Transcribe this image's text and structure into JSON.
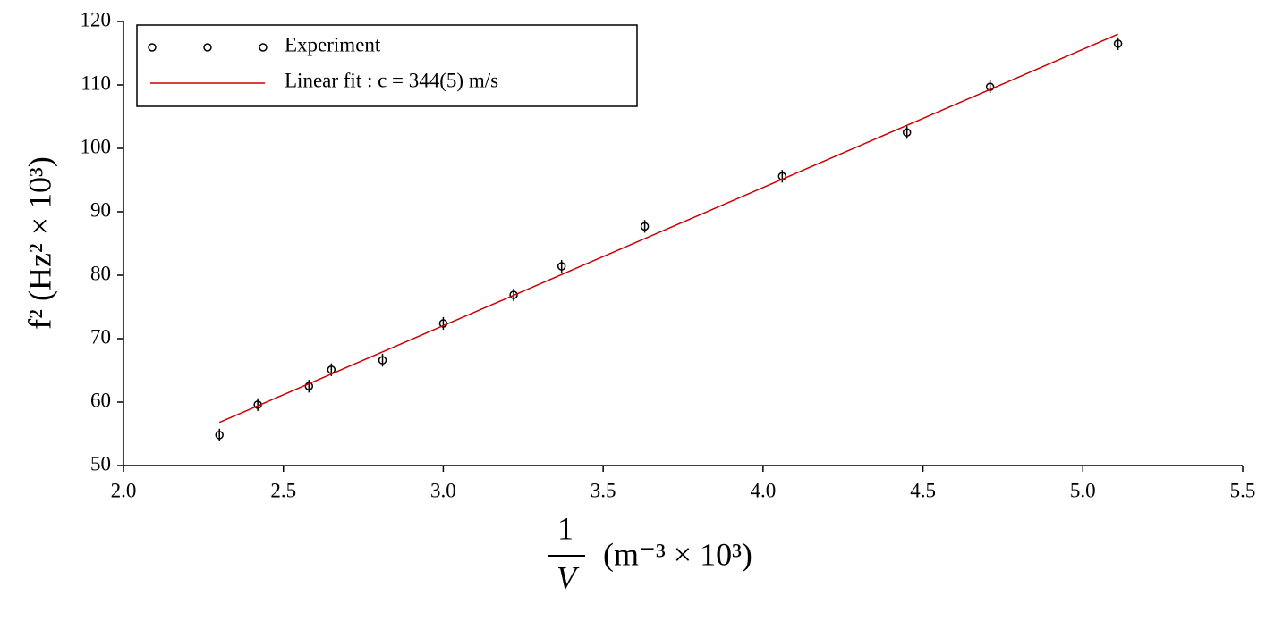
{
  "chart_data": {
    "type": "scatter",
    "x_label": {
      "numerator": "1",
      "denominator": "V",
      "unit": "(m⁻³ × 10³)"
    },
    "y_label": "f² (Hz² × 10³)",
    "series": [
      {
        "name": "Experiment",
        "type": "scatter",
        "color": "#000000",
        "x": [
          2.3,
          2.42,
          2.58,
          2.65,
          2.81,
          3.0,
          3.22,
          3.37,
          3.63,
          4.06,
          4.45,
          4.71,
          5.11
        ],
        "values": [
          54.8,
          59.6,
          62.5,
          65.1,
          66.6,
          72.4,
          76.9,
          81.4,
          87.7,
          95.6,
          102.5,
          109.7,
          116.5
        ],
        "errors": [
          1,
          1,
          1,
          1,
          1,
          1,
          1,
          1,
          1,
          1,
          1,
          1,
          1
        ]
      },
      {
        "name": "Linear fit :  c  =  344(5) m/s",
        "type": "line",
        "color": "#cc0000",
        "x": [
          2.3,
          5.11
        ],
        "values": [
          56.8,
          118.0
        ]
      }
    ],
    "xlim": [
      2.0,
      5.5
    ],
    "xticks": [
      {
        "value": 2,
        "label": "2.0"
      },
      2.5,
      {
        "value": 3,
        "label": "3.0"
      },
      3.5,
      {
        "value": 4,
        "label": "4.0"
      },
      4.5,
      {
        "value": 5,
        "label": "5.0"
      },
      5.5
    ],
    "ylim": [
      50,
      120
    ],
    "yticks": [
      50,
      60,
      70,
      80,
      90,
      100,
      110,
      120
    ],
    "legend": "top-left"
  }
}
